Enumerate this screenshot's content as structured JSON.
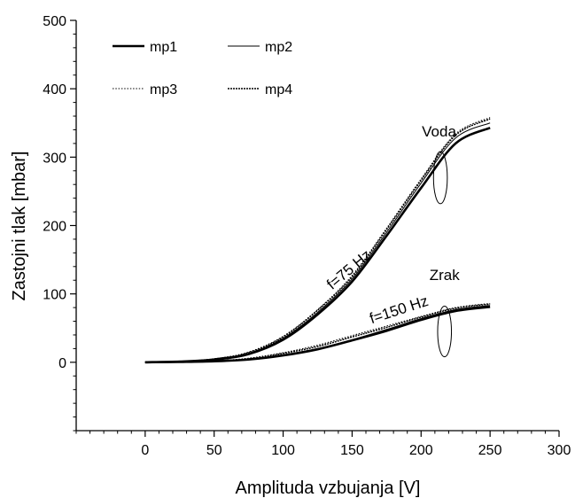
{
  "chart_data": {
    "type": "line",
    "title": "",
    "xlabel": "Amplituda vzbujanja [V]",
    "ylabel": "Zastojni tlak [mbar]",
    "xlim": [
      -50,
      300
    ],
    "ylim": [
      -100,
      500
    ],
    "xticks": [
      0,
      50,
      100,
      150,
      200,
      250,
      300
    ],
    "yticks": [
      0,
      100,
      200,
      300,
      400,
      500
    ],
    "grid": false,
    "legend_position": "top-left",
    "series": [
      {
        "name": "mp1",
        "group": "f=75 Hz",
        "style": "thick-solid",
        "x": [
          0,
          25,
          50,
          75,
          100,
          125,
          150,
          175,
          200,
          225,
          250
        ],
        "y": [
          0,
          1,
          4,
          12,
          33,
          70,
          118,
          185,
          255,
          320,
          343
        ]
      },
      {
        "name": "mp2",
        "group": "f=75 Hz",
        "style": "thin-solid",
        "x": [
          0,
          25,
          50,
          75,
          100,
          125,
          150,
          175,
          200,
          225,
          250
        ],
        "y": [
          0,
          1,
          4,
          13,
          35,
          73,
          122,
          190,
          262,
          328,
          350
        ]
      },
      {
        "name": "mp3",
        "group": "f=75 Hz",
        "style": "dotted",
        "x": [
          0,
          25,
          50,
          75,
          100,
          125,
          150,
          175,
          200,
          225,
          250
        ],
        "y": [
          0,
          1,
          5,
          15,
          38,
          77,
          127,
          196,
          268,
          334,
          358
        ]
      },
      {
        "name": "mp4",
        "group": "f=75 Hz",
        "style": "dense-dotted",
        "x": [
          0,
          25,
          50,
          75,
          100,
          125,
          150,
          175,
          200,
          225,
          250
        ],
        "y": [
          0,
          1,
          5,
          14,
          37,
          76,
          125,
          194,
          266,
          332,
          356
        ]
      },
      {
        "name": "mp1",
        "group": "f=150 Hz",
        "style": "thick-solid",
        "x": [
          0,
          25,
          50,
          75,
          100,
          125,
          150,
          175,
          200,
          225,
          250
        ],
        "y": [
          0,
          0.5,
          1.5,
          4,
          10,
          19,
          32,
          46,
          62,
          75,
          81
        ]
      },
      {
        "name": "mp2",
        "group": "f=150 Hz",
        "style": "thin-solid",
        "x": [
          0,
          25,
          50,
          75,
          100,
          125,
          150,
          175,
          200,
          225,
          250
        ],
        "y": [
          0,
          0.5,
          1.5,
          4,
          11,
          20,
          33,
          48,
          64,
          77,
          83
        ]
      },
      {
        "name": "mp3",
        "group": "f=150 Hz",
        "style": "dotted",
        "x": [
          0,
          25,
          50,
          75,
          100,
          125,
          150,
          175,
          200,
          225,
          250
        ],
        "y": [
          0,
          0.5,
          2,
          6,
          14,
          25,
          39,
          53,
          67,
          80,
          86
        ]
      },
      {
        "name": "mp4",
        "group": "f=150 Hz",
        "style": "dense-dotted",
        "x": [
          0,
          25,
          50,
          75,
          100,
          125,
          150,
          175,
          200,
          225,
          250
        ],
        "y": [
          0,
          0.5,
          2,
          5,
          13,
          23,
          37,
          51,
          66,
          79,
          85
        ]
      }
    ],
    "legend": [
      {
        "label": "mp1",
        "style": "thick-solid"
      },
      {
        "label": "mp2",
        "style": "thin-solid"
      },
      {
        "label": "mp3",
        "style": "dotted"
      },
      {
        "label": "mp4",
        "style": "dense-dotted"
      }
    ],
    "annotations": [
      {
        "text": "Voda",
        "x": 213,
        "y": 330
      },
      {
        "text": "Zrak",
        "x": 217,
        "y": 120
      },
      {
        "text": "f=75 Hz",
        "x": 150,
        "y": 130,
        "rotation_deg": -40
      },
      {
        "text": "f=150 Hz",
        "x": 185,
        "y": 70,
        "rotation_deg": -18
      }
    ],
    "ellipses": [
      {
        "name": "voda-group-ellipse",
        "cx": 214,
        "cy": 270,
        "rx": 5,
        "ry": 38
      },
      {
        "name": "zrak-group-ellipse",
        "cx": 217,
        "cy": 45,
        "rx": 5,
        "ry": 37
      }
    ]
  }
}
